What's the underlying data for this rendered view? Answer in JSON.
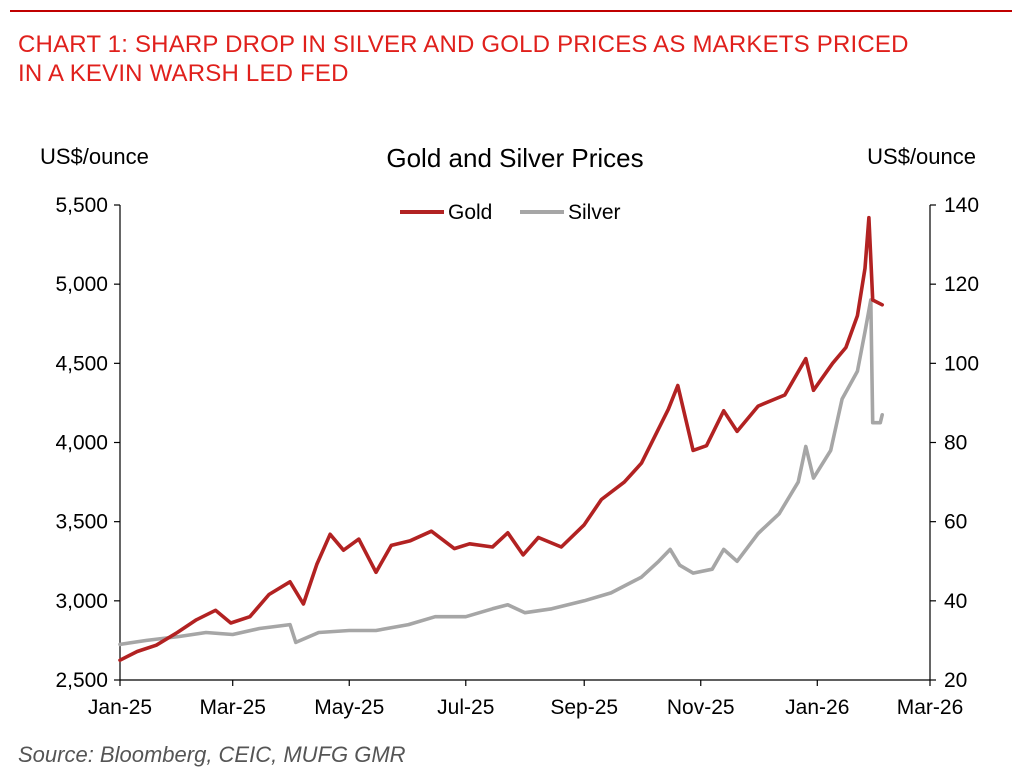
{
  "heading": {
    "line1": "CHART 1: SHARP DROP IN SILVER AND GOLD PRICES AS MARKETS PRICED",
    "line2": "IN A KEVIN WARSH LED FED"
  },
  "source": "Source: Bloomberg, CEIC, MUFG GMR",
  "chart_data": {
    "type": "line",
    "title": "Gold and Silver Prices",
    "ylabel": "US$/ounce",
    "y2label": "US$/ounce",
    "ylim": [
      2500,
      5500
    ],
    "y2lim": [
      20,
      140
    ],
    "yticks": [
      "2,500",
      "3,000",
      "3,500",
      "4,000",
      "4,500",
      "5,000",
      "5,500"
    ],
    "y2ticks": [
      "20",
      "40",
      "60",
      "80",
      "100",
      "120",
      "140"
    ],
    "xticks": [
      "Jan-25",
      "Mar-25",
      "May-25",
      "Jul-25",
      "Sep-25",
      "Nov-25",
      "Jan-26",
      "Mar-26"
    ],
    "xlim": [
      "2025-01-01",
      "2026-03-01"
    ],
    "grid": false,
    "legend": "top-center",
    "series": [
      {
        "name": "Gold",
        "axis": "left",
        "color": "#b22222",
        "points": [
          [
            "2025-01-01",
            2625
          ],
          [
            "2025-01-10",
            2680
          ],
          [
            "2025-01-20",
            2720
          ],
          [
            "2025-01-31",
            2800
          ],
          [
            "2025-02-10",
            2880
          ],
          [
            "2025-02-20",
            2940
          ],
          [
            "2025-02-28",
            2860
          ],
          [
            "2025-03-10",
            2900
          ],
          [
            "2025-03-20",
            3040
          ],
          [
            "2025-03-31",
            3120
          ],
          [
            "2025-04-07",
            2980
          ],
          [
            "2025-04-14",
            3230
          ],
          [
            "2025-04-21",
            3420
          ],
          [
            "2025-04-28",
            3320
          ],
          [
            "2025-05-06",
            3390
          ],
          [
            "2025-05-15",
            3180
          ],
          [
            "2025-05-23",
            3350
          ],
          [
            "2025-06-02",
            3380
          ],
          [
            "2025-06-13",
            3440
          ],
          [
            "2025-06-25",
            3330
          ],
          [
            "2025-07-03",
            3360
          ],
          [
            "2025-07-15",
            3340
          ],
          [
            "2025-07-23",
            3430
          ],
          [
            "2025-07-31",
            3290
          ],
          [
            "2025-08-08",
            3400
          ],
          [
            "2025-08-20",
            3340
          ],
          [
            "2025-09-01",
            3480
          ],
          [
            "2025-09-10",
            3640
          ],
          [
            "2025-09-22",
            3750
          ],
          [
            "2025-10-01",
            3870
          ],
          [
            "2025-10-08",
            4040
          ],
          [
            "2025-10-15",
            4210
          ],
          [
            "2025-10-20",
            4360
          ],
          [
            "2025-10-28",
            3950
          ],
          [
            "2025-11-04",
            3980
          ],
          [
            "2025-11-13",
            4200
          ],
          [
            "2025-11-20",
            4070
          ],
          [
            "2025-12-01",
            4230
          ],
          [
            "2025-12-15",
            4300
          ],
          [
            "2025-12-26",
            4530
          ],
          [
            "2025-12-30",
            4330
          ],
          [
            "2026-01-09",
            4500
          ],
          [
            "2026-01-16",
            4600
          ],
          [
            "2026-01-22",
            4800
          ],
          [
            "2026-01-26",
            5100
          ],
          [
            "2026-01-28",
            5420
          ],
          [
            "2026-01-30",
            4900
          ],
          [
            "2026-02-04",
            4870
          ]
        ]
      },
      {
        "name": "Silver",
        "axis": "right",
        "color": "#a6a6a6",
        "points": [
          [
            "2025-01-01",
            29
          ],
          [
            "2025-01-15",
            30
          ],
          [
            "2025-02-01",
            31
          ],
          [
            "2025-02-15",
            32
          ],
          [
            "2025-03-01",
            31.5
          ],
          [
            "2025-03-15",
            33
          ],
          [
            "2025-03-31",
            34
          ],
          [
            "2025-04-03",
            29.5
          ],
          [
            "2025-04-15",
            32
          ],
          [
            "2025-05-01",
            32.5
          ],
          [
            "2025-05-15",
            32.5
          ],
          [
            "2025-06-01",
            34
          ],
          [
            "2025-06-15",
            36
          ],
          [
            "2025-07-01",
            36
          ],
          [
            "2025-07-15",
            38
          ],
          [
            "2025-07-23",
            39
          ],
          [
            "2025-08-01",
            37
          ],
          [
            "2025-08-15",
            38
          ],
          [
            "2025-09-01",
            40
          ],
          [
            "2025-09-15",
            42
          ],
          [
            "2025-10-01",
            46
          ],
          [
            "2025-10-10",
            50
          ],
          [
            "2025-10-16",
            53
          ],
          [
            "2025-10-21",
            49
          ],
          [
            "2025-10-28",
            47
          ],
          [
            "2025-11-07",
            48
          ],
          [
            "2025-11-13",
            53
          ],
          [
            "2025-11-20",
            50
          ],
          [
            "2025-12-01",
            57
          ],
          [
            "2025-12-12",
            62
          ],
          [
            "2025-12-22",
            70
          ],
          [
            "2025-12-26",
            79
          ],
          [
            "2025-12-30",
            71
          ],
          [
            "2026-01-08",
            78
          ],
          [
            "2026-01-14",
            91
          ],
          [
            "2026-01-22",
            98
          ],
          [
            "2026-01-26",
            108
          ],
          [
            "2026-01-29",
            116
          ],
          [
            "2026-01-30",
            85
          ],
          [
            "2026-02-03",
            85
          ],
          [
            "2026-02-04",
            87
          ]
        ]
      }
    ]
  }
}
